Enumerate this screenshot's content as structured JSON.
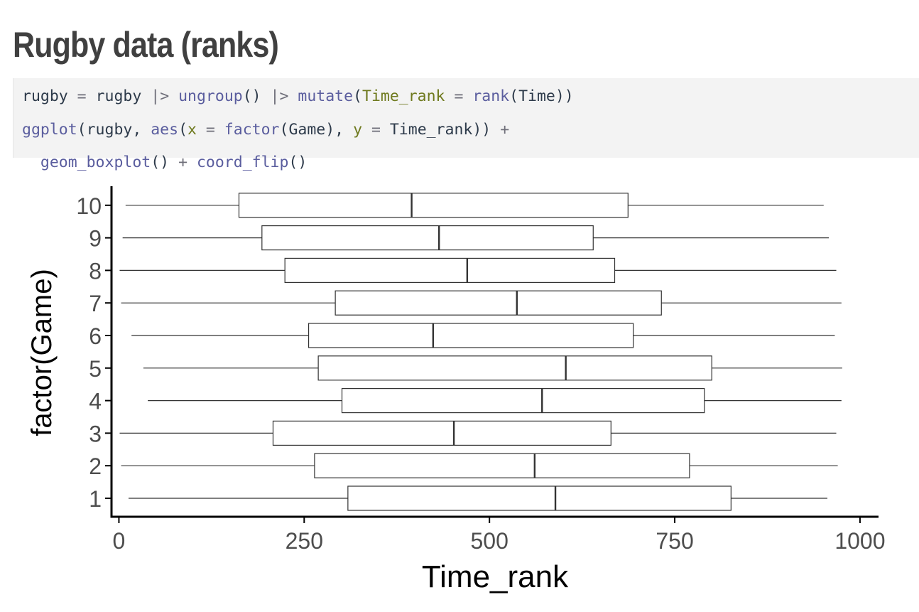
{
  "slide": {
    "title": "Rugby data (ranks)"
  },
  "code": {
    "lines": [
      [
        {
          "t": "rugby",
          "c": "plain"
        },
        {
          "t": " = ",
          "c": "op"
        },
        {
          "t": "rugby",
          "c": "plain"
        },
        {
          "t": " |> ",
          "c": "op"
        },
        {
          "t": "ungroup",
          "c": "fn"
        },
        {
          "t": "()",
          "c": "plain"
        },
        {
          "t": " |> ",
          "c": "op"
        },
        {
          "t": "mutate",
          "c": "fn"
        },
        {
          "t": "(",
          "c": "plain"
        },
        {
          "t": "Time_rank",
          "c": "arg"
        },
        {
          "t": " = ",
          "c": "op"
        },
        {
          "t": "rank",
          "c": "fn"
        },
        {
          "t": "(Time))",
          "c": "plain"
        }
      ],
      [
        {
          "t": "ggplot",
          "c": "fn"
        },
        {
          "t": "(rugby, ",
          "c": "plain"
        },
        {
          "t": "aes",
          "c": "fn"
        },
        {
          "t": "(",
          "c": "plain"
        },
        {
          "t": "x",
          "c": "arg"
        },
        {
          "t": " = ",
          "c": "op"
        },
        {
          "t": "factor",
          "c": "fn"
        },
        {
          "t": "(Game), ",
          "c": "plain"
        },
        {
          "t": "y",
          "c": "arg"
        },
        {
          "t": " = ",
          "c": "op"
        },
        {
          "t": "Time_rank))",
          "c": "plain"
        },
        {
          "t": " +",
          "c": "op"
        }
      ],
      [
        {
          "t": "  ",
          "c": "plain"
        },
        {
          "t": "geom_boxplot",
          "c": "fn"
        },
        {
          "t": "()",
          "c": "plain"
        },
        {
          "t": " + ",
          "c": "op"
        },
        {
          "t": "coord_flip",
          "c": "fn"
        },
        {
          "t": "()",
          "c": "plain"
        }
      ]
    ]
  },
  "colors": {
    "title": "#404040",
    "code_bg": "#f3f3f3",
    "box_stroke": "#333333",
    "axis": "#000000",
    "tick_label": "#4d4d4d"
  },
  "chart_data": {
    "type": "boxplot",
    "orientation": "horizontal",
    "xlabel": "Time_rank",
    "ylabel": "factor(Game)",
    "xlim": [
      -10,
      1025
    ],
    "x_ticks": [
      0,
      250,
      500,
      750,
      1000
    ],
    "x_tick_labels": [
      "0",
      "250",
      "500",
      "750",
      "1000"
    ],
    "categories": [
      "1",
      "2",
      "3",
      "4",
      "5",
      "6",
      "7",
      "8",
      "9",
      "10"
    ],
    "boxes": [
      {
        "game": "1",
        "min": 13,
        "q1": 309,
        "median": 589,
        "q3": 826,
        "max": 956
      },
      {
        "game": "2",
        "min": 3,
        "q1": 264,
        "median": 561,
        "q3": 770,
        "max": 970
      },
      {
        "game": "3",
        "min": 1,
        "q1": 208,
        "median": 452,
        "q3": 664,
        "max": 968
      },
      {
        "game": "4",
        "min": 39,
        "q1": 301,
        "median": 571,
        "q3": 790,
        "max": 975
      },
      {
        "game": "5",
        "min": 33,
        "q1": 269,
        "median": 603,
        "q3": 800,
        "max": 976
      },
      {
        "game": "6",
        "min": 17,
        "q1": 256,
        "median": 424,
        "q3": 694,
        "max": 966
      },
      {
        "game": "7",
        "min": 3,
        "q1": 292,
        "median": 537,
        "q3": 732,
        "max": 975
      },
      {
        "game": "8",
        "min": 1,
        "q1": 224,
        "median": 470,
        "q3": 669,
        "max": 968
      },
      {
        "game": "9",
        "min": 5,
        "q1": 193,
        "median": 432,
        "q3": 640,
        "max": 958
      },
      {
        "game": "10",
        "min": 9,
        "q1": 162,
        "median": 395,
        "q3": 687,
        "max": 951
      }
    ],
    "grid": false,
    "legend": "none"
  }
}
